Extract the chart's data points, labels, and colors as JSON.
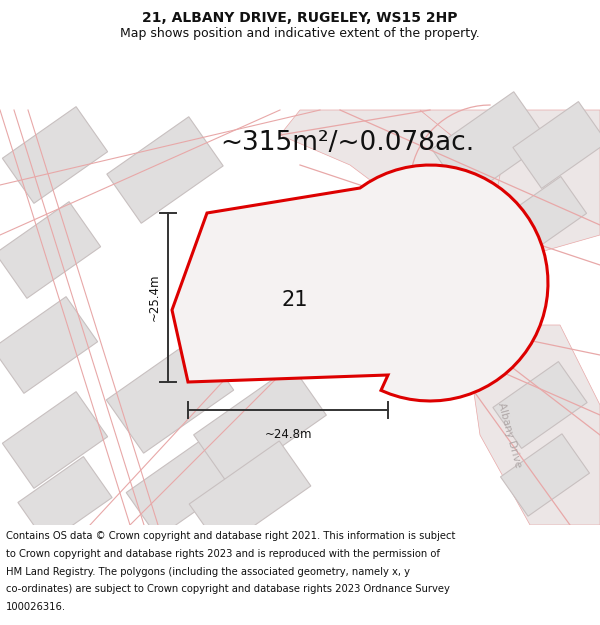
{
  "title_line1": "21, ALBANY DRIVE, RUGELEY, WS15 2HP",
  "title_line2": "Map shows position and indicative extent of the property.",
  "area_text": "~315m²/~0.078ac.",
  "number_label": "21",
  "dim_vertical": "~25.4m",
  "dim_horizontal": "~24.8m",
  "footer_lines": [
    "Contains OS data © Crown copyright and database right 2021. This information is subject",
    "to Crown copyright and database rights 2023 and is reproduced with the permission of",
    "HM Land Registry. The polygons (including the associated geometry, namely x, y",
    "co-ordinates) are subject to Crown copyright and database rights 2023 Ordnance Survey",
    "100026316."
  ],
  "map_bg": "#f5f2f2",
  "road_line_color": "#e8a8a8",
  "road_fill_color": "#ece6e6",
  "building_face": "#e0dede",
  "building_edge": "#c8c0c0",
  "plot_color": "#dd0000",
  "plot_fill": "#f5f2f2",
  "dim_color": "#333333",
  "road_label_color": "#b0a8a8",
  "title_fontsize": 10,
  "subtitle_fontsize": 9,
  "area_fontsize": 19,
  "footer_fontsize": 7.2
}
